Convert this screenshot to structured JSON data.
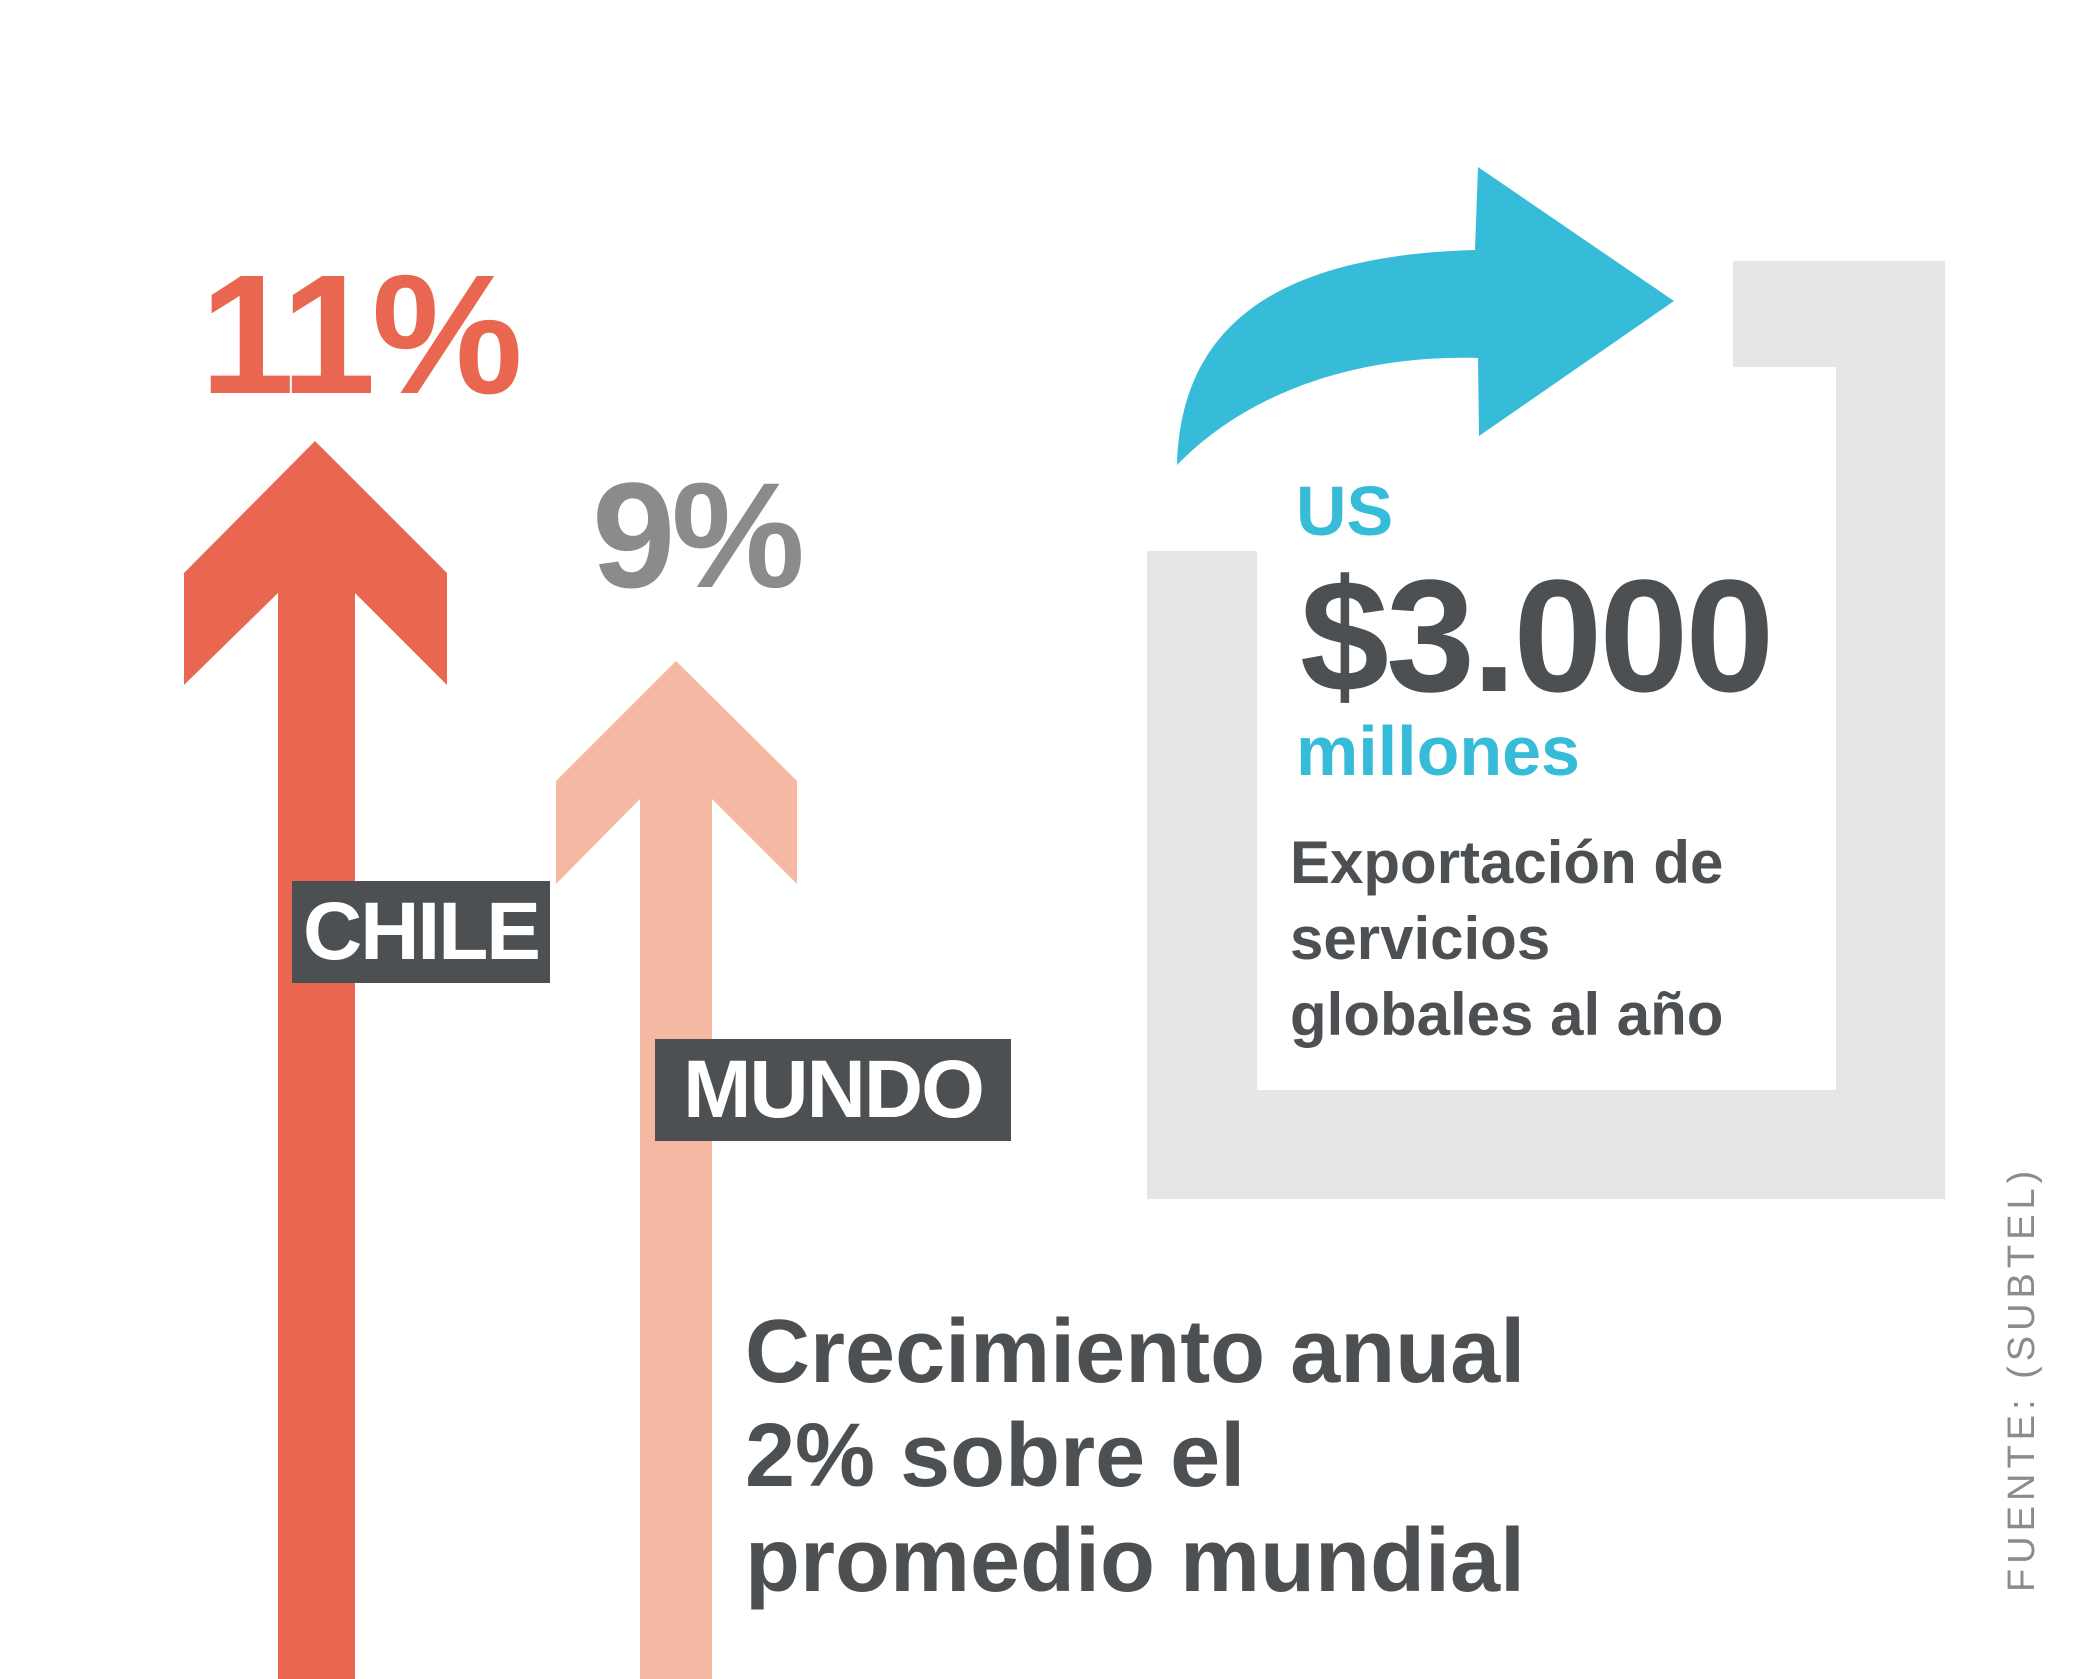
{
  "colors": {
    "chile": "#E96750",
    "mundo": "#F5B8A2",
    "dark": "#4D5053",
    "gray_text": "#8B8B8B",
    "accent": "#36BBD8",
    "frame": "#E6E6E6"
  },
  "chile": {
    "percent": "11%",
    "label": "CHILE"
  },
  "mundo": {
    "percent": "9%",
    "label": "MUNDO"
  },
  "growth_note": "Crecimiento anual\n2% sobre el\npromedio mundial",
  "exports": {
    "currency": "US",
    "amount": "$3.000",
    "unit": "millones",
    "description": "Exportación de\nservicios\nglobales al año"
  },
  "source": "FUENTE: (SUBTEL)"
}
